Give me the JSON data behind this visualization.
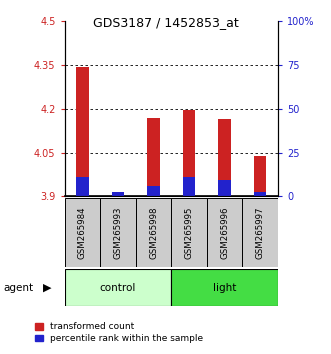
{
  "title": "GDS3187 / 1452853_at",
  "samples": [
    "GSM265984",
    "GSM265993",
    "GSM265998",
    "GSM265995",
    "GSM265996",
    "GSM265997"
  ],
  "red_values": [
    4.345,
    3.915,
    4.17,
    4.195,
    4.165,
    4.04
  ],
  "blue_values": [
    3.965,
    3.915,
    3.935,
    3.965,
    3.955,
    3.915
  ],
  "red_color": "#cc2222",
  "blue_color": "#2222cc",
  "bar_bottom": 3.9,
  "ylim_left": [
    3.9,
    4.5
  ],
  "ylim_right": [
    0,
    100
  ],
  "yticks_left": [
    3.9,
    4.05,
    4.2,
    4.35,
    4.5
  ],
  "yticks_right": [
    0,
    25,
    50,
    75,
    100
  ],
  "ytick_labels_left": [
    "3.9",
    "4.05",
    "4.2",
    "4.35",
    "4.5"
  ],
  "ytick_labels_right": [
    "0",
    "25",
    "50",
    "75",
    "100%"
  ],
  "grid_values": [
    4.05,
    4.2,
    4.35
  ],
  "control_color": "#ccffcc",
  "light_color": "#44dd44",
  "bar_width": 0.35,
  "blue_bar_width": 0.35,
  "sample_box_color": "#cccccc",
  "agent_label": "agent"
}
